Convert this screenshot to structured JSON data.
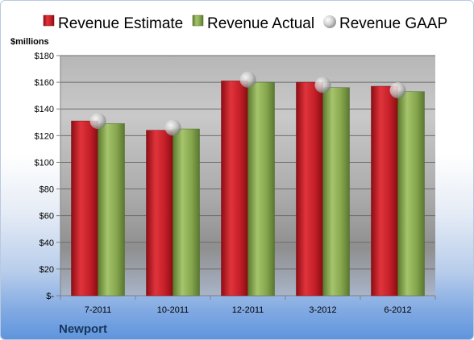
{
  "chart_data": {
    "type": "bar",
    "unit_label": "$millions",
    "company": "Newport",
    "categories": [
      "7-2011",
      "10-2011",
      "12-2011",
      "3-2012",
      "6-2012"
    ],
    "series": [
      {
        "name": "Revenue Estimate",
        "kind": "bar",
        "color": "#c8202a",
        "values": [
          131,
          124,
          161,
          160,
          157
        ]
      },
      {
        "name": "Revenue Actual",
        "kind": "bar",
        "color": "#8cae55",
        "values": [
          129,
          125,
          160,
          156,
          153
        ]
      },
      {
        "name": "Revenue GAAP",
        "kind": "marker",
        "color": "#b8b8b8",
        "values": [
          131,
          126,
          162,
          158,
          154
        ]
      }
    ],
    "ylim": [
      0,
      180
    ],
    "yticks": [
      0,
      20,
      40,
      60,
      80,
      100,
      120,
      140,
      160,
      180
    ],
    "ytick_labels": [
      "$-",
      "$20",
      "$40",
      "$60",
      "$80",
      "$100",
      "$120",
      "$140",
      "$160",
      "$180"
    ],
    "grid": true,
    "legend_position": "top"
  }
}
